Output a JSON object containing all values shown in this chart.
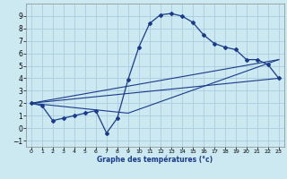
{
  "xlabel": "Graphe des températures (°c)",
  "background_color": "#cce8f0",
  "grid_color": "#aaccdd",
  "line_color": "#1a3a8c",
  "xlim": [
    -0.5,
    23.5
  ],
  "ylim": [
    -1.5,
    10.0
  ],
  "xticks": [
    0,
    1,
    2,
    3,
    4,
    5,
    6,
    7,
    8,
    9,
    10,
    11,
    12,
    13,
    14,
    15,
    16,
    17,
    18,
    19,
    20,
    21,
    22,
    23
  ],
  "yticks": [
    -1,
    0,
    1,
    2,
    3,
    4,
    5,
    6,
    7,
    8,
    9
  ],
  "line1_x": [
    0,
    1,
    2,
    3,
    4,
    5,
    6,
    7,
    8,
    9,
    10,
    11,
    12,
    13,
    14,
    15,
    16,
    17,
    18,
    19,
    20,
    21,
    22,
    23
  ],
  "line1_y": [
    2.0,
    1.8,
    0.6,
    0.8,
    1.0,
    1.2,
    1.4,
    -0.4,
    0.8,
    3.9,
    6.5,
    8.4,
    9.1,
    9.2,
    9.0,
    8.5,
    7.5,
    6.8,
    6.5,
    6.3,
    5.5,
    5.5,
    5.1,
    4.0
  ],
  "line2_x": [
    0,
    23
  ],
  "line2_y": [
    2.0,
    4.0
  ],
  "line3_x": [
    0,
    23
  ],
  "line3_y": [
    2.0,
    5.5
  ],
  "line4_x": [
    0,
    9,
    23
  ],
  "line4_y": [
    2.0,
    1.2,
    5.5
  ]
}
